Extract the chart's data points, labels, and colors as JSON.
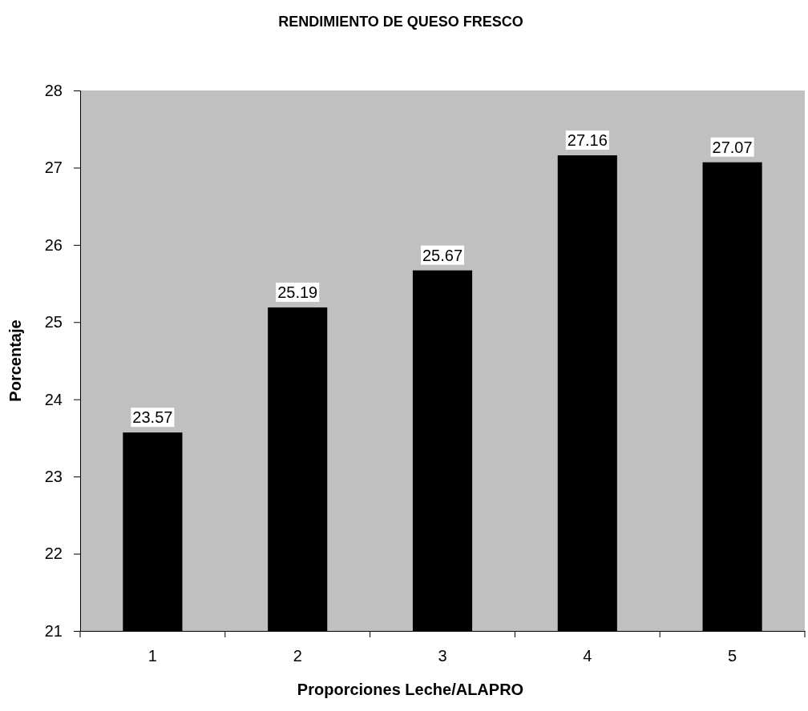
{
  "chart_data": {
    "type": "bar",
    "title": "RENDIMIENTO DE QUESO FRESCO",
    "xlabel": "Proporciones Leche/ALAPRO",
    "ylabel": "Porcentaje",
    "categories": [
      "1",
      "2",
      "3",
      "4",
      "5"
    ],
    "values": [
      23.57,
      25.19,
      25.67,
      27.16,
      27.07
    ],
    "color": "#000000",
    "ylim": [
      21,
      28
    ],
    "yticks": [
      21,
      22,
      23,
      24,
      25,
      26,
      27,
      28
    ],
    "grid": false,
    "data_labels": true
  }
}
